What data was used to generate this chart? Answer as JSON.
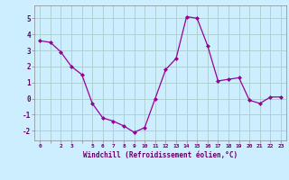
{
  "x": [
    0,
    1,
    2,
    3,
    4,
    5,
    6,
    7,
    8,
    9,
    10,
    11,
    12,
    13,
    14,
    15,
    16,
    17,
    18,
    19,
    20,
    21,
    22,
    23
  ],
  "y": [
    3.6,
    3.5,
    2.9,
    2.0,
    1.5,
    -0.3,
    -1.2,
    -1.4,
    -1.7,
    -2.1,
    -1.8,
    0.0,
    1.8,
    2.5,
    5.1,
    5.0,
    3.3,
    1.1,
    1.2,
    1.3,
    -0.1,
    -0.3,
    0.1,
    0.1
  ],
  "line_color": "#990099",
  "marker": "D",
  "marker_size": 2,
  "bg_color": "#cceeff",
  "grid_color": "#aacccc",
  "xlabel": "Windchill (Refroidissement éolien,°C)",
  "xlabel_color": "#660066",
  "tick_color": "#660066",
  "ylabel_ticks": [
    -2,
    -1,
    0,
    1,
    2,
    3,
    4,
    5
  ],
  "xtick_labels": [
    "0",
    "",
    "2",
    "3",
    "",
    "5",
    "6",
    "7",
    "8",
    "9",
    "10",
    "11",
    "12",
    "13",
    "14",
    "15",
    "16",
    "17",
    "18",
    "19",
    "20",
    "21",
    "22",
    "23"
  ],
  "xlim": [
    -0.5,
    23.5
  ],
  "ylim": [
    -2.6,
    5.8
  ]
}
